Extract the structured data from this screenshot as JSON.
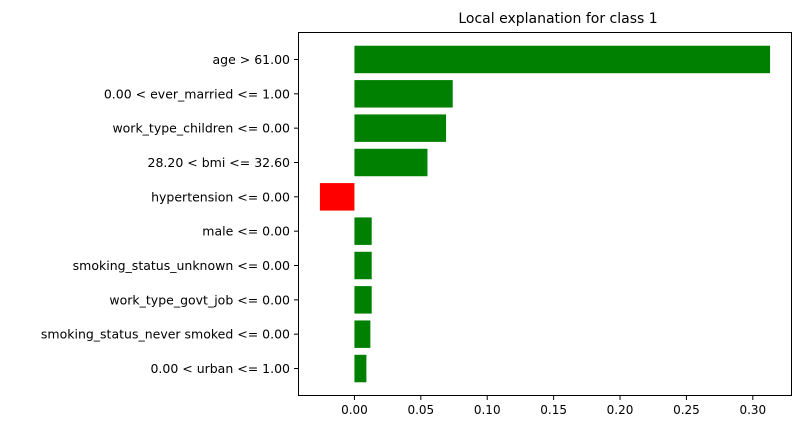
{
  "chart_data": {
    "type": "bar",
    "orientation": "horizontal",
    "title": "Local explanation for class 1",
    "xlabel": "",
    "ylabel": "",
    "categories": [
      "age > 61.00",
      "0.00 < ever_married <= 1.00",
      "work_type_children <= 0.00",
      "28.20 < bmi <= 32.60",
      "hypertension <= 0.00",
      "male <= 0.00",
      "smoking_status_unknown <= 0.00",
      "work_type_govt_job <= 0.00",
      "smoking_status_never smoked <= 0.00",
      "0.00 < urban <= 1.00"
    ],
    "values": [
      0.313,
      0.074,
      0.069,
      0.055,
      -0.026,
      0.013,
      0.013,
      0.013,
      0.012,
      0.009
    ],
    "xlim": [
      -0.0425,
      0.3295
    ],
    "xticks": [
      0.0,
      0.05,
      0.1,
      0.15,
      0.2,
      0.25,
      0.3
    ],
    "xtick_labels": [
      "0.00",
      "0.05",
      "0.10",
      "0.15",
      "0.20",
      "0.25",
      "0.30"
    ],
    "colors": {
      "positive": "#008000",
      "negative": "#ff0000",
      "axis": "#000000"
    },
    "grid": false,
    "legend": "none"
  }
}
